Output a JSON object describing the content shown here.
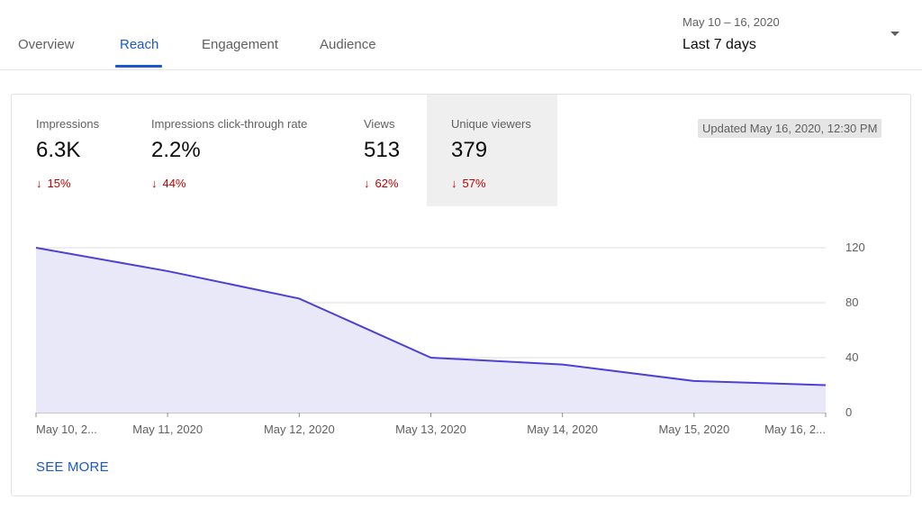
{
  "tabs": [
    {
      "label": "Overview",
      "active": false
    },
    {
      "label": "Reach",
      "active": true
    },
    {
      "label": "Engagement",
      "active": false
    },
    {
      "label": "Audience",
      "active": false
    }
  ],
  "date_picker": {
    "range": "May 10 – 16, 2020",
    "label": "Last 7 days"
  },
  "metrics": [
    {
      "label": "Impressions",
      "value": "6.3K",
      "delta": "15%",
      "direction": "down"
    },
    {
      "label": "Impressions click-through rate",
      "value": "2.2%",
      "delta": "44%",
      "direction": "down"
    },
    {
      "label": "Views",
      "value": "513",
      "delta": "62%",
      "direction": "down"
    },
    {
      "label": "Unique viewers",
      "value": "379",
      "delta": "57%",
      "direction": "down",
      "selected": true
    }
  ],
  "updated": "Updated May 16, 2020, 12:30 PM",
  "see_more": "SEE MORE",
  "colors": {
    "accent": "#1a57d1",
    "line": "#4b41d6",
    "area": "#e9e8f8",
    "negative": "#c00000",
    "selected_metric_bg": "#efefef"
  },
  "chart_data": {
    "type": "area",
    "x": [
      "May 10, 2020",
      "May 11, 2020",
      "May 12, 2020",
      "May 13, 2020",
      "May 14, 2020",
      "May 15, 2020",
      "May 16, 2020"
    ],
    "x_tick_labels": [
      "May 10, 2...",
      "May 11, 2020",
      "May 12, 2020",
      "May 13, 2020",
      "May 14, 2020",
      "May 15, 2020",
      "May 16, 2..."
    ],
    "series": [
      {
        "values": [
          120,
          103,
          83,
          40,
          35,
          23,
          20
        ]
      }
    ],
    "y_ticks": [
      0,
      40,
      80,
      120
    ],
    "ylim": [
      0,
      120
    ],
    "y_axis_side": "right",
    "grid": true,
    "title": "",
    "xlabel": "",
    "ylabel": ""
  }
}
